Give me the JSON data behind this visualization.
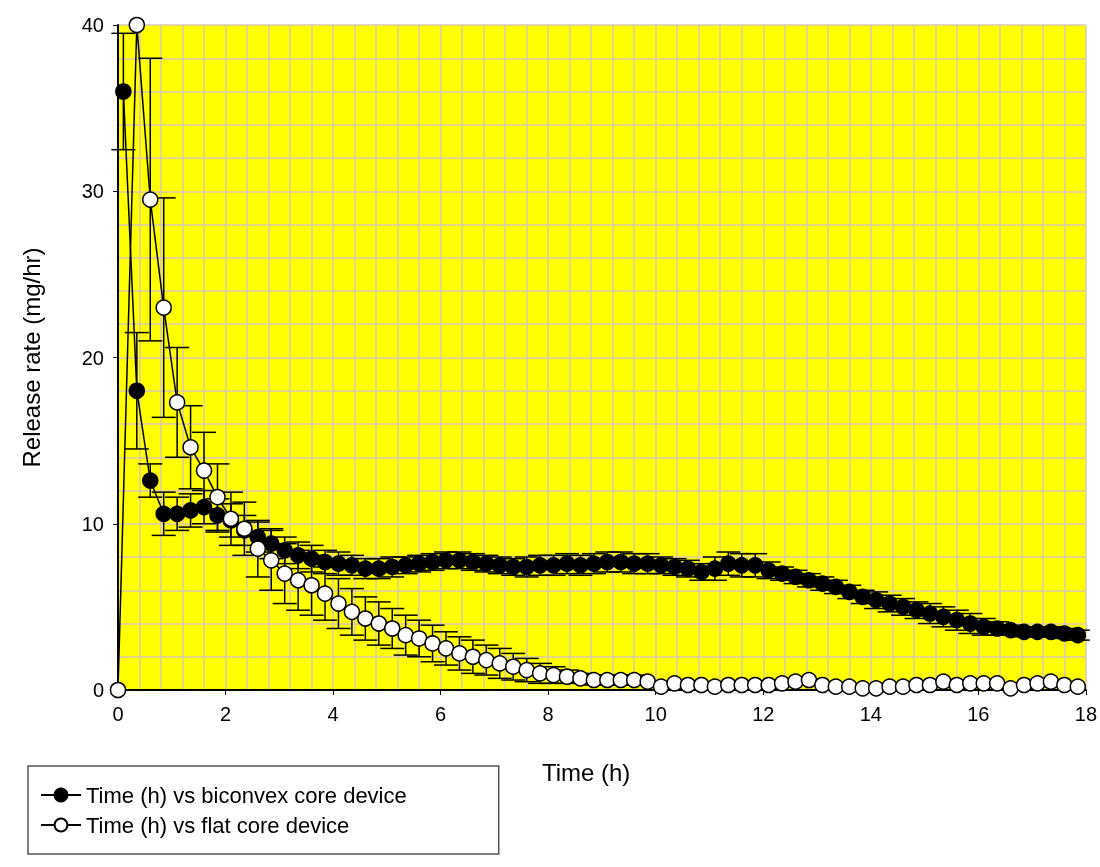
{
  "chart_data": {
    "type": "line",
    "xlabel": "Time (h)",
    "ylabel": "Release rate (mg/hr)",
    "xlim": [
      0,
      18
    ],
    "xticks": [
      0,
      2,
      4,
      6,
      8,
      10,
      12,
      14,
      16,
      18
    ],
    "ylim": [
      0,
      40
    ],
    "yticks": [
      0,
      10,
      20,
      30,
      40
    ],
    "grid": true,
    "legend": "bottom left",
    "marker": "circle",
    "line_style": "solid",
    "series": [
      {
        "name": "Time (h) vs biconvex core device",
        "color": "#000000",
        "x": [
          0.1,
          0.35,
          0.6,
          0.85,
          1.1,
          1.35,
          1.6,
          1.85,
          2.1,
          2.35,
          2.6,
          2.85,
          3.1,
          3.35,
          3.6,
          3.85,
          4.1,
          4.35,
          4.6,
          4.85,
          5.1,
          5.35,
          5.6,
          5.85,
          6.1,
          6.35,
          6.6,
          6.85,
          7.1,
          7.35,
          7.6,
          7.85,
          8.1,
          8.35,
          8.6,
          8.85,
          9.1,
          9.35,
          9.6,
          9.85,
          10.1,
          10.35,
          10.6,
          10.85,
          11.1,
          11.35,
          11.6,
          11.85,
          12.1,
          12.35,
          12.6,
          12.85,
          13.1,
          13.35,
          13.6,
          13.85,
          14.1,
          14.35,
          14.6,
          14.85,
          15.1,
          15.35,
          15.6,
          15.85,
          16.1,
          16.35,
          16.6,
          16.85,
          17.1,
          17.35,
          17.6,
          17.85
        ],
        "values": [
          36,
          18,
          12.6,
          10.6,
          10.6,
          10.8,
          11,
          10.5,
          10.2,
          9.6,
          9.2,
          8.8,
          8.4,
          8.1,
          7.9,
          7.7,
          7.6,
          7.5,
          7.3,
          7.3,
          7.4,
          7.5,
          7.6,
          7.7,
          7.8,
          7.8,
          7.7,
          7.6,
          7.5,
          7.4,
          7.4,
          7.5,
          7.5,
          7.6,
          7.5,
          7.6,
          7.7,
          7.7,
          7.6,
          7.6,
          7.5,
          7.4,
          7.3,
          7.1,
          7.3,
          7.6,
          7.5,
          7.5,
          7.2,
          7,
          6.8,
          6.6,
          6.4,
          6.2,
          5.9,
          5.6,
          5.4,
          5.2,
          5,
          4.8,
          4.6,
          4.4,
          4.2,
          4,
          3.8,
          3.7,
          3.6,
          3.5,
          3.5,
          3.5,
          3.4,
          3.3
        ],
        "errors": [
          3.5,
          3.5,
          1,
          1.3,
          1,
          1,
          1,
          1,
          1,
          0.9,
          0.9,
          0.9,
          0.8,
          0.8,
          0.8,
          0.7,
          0.7,
          0.6,
          0.6,
          0.6,
          0.6,
          0.5,
          0.5,
          0.5,
          0.5,
          0.5,
          0.5,
          0.5,
          0.5,
          0.5,
          0.6,
          0.6,
          0.6,
          0.6,
          0.6,
          0.6,
          0.6,
          0.6,
          0.6,
          0.6,
          0.5,
          0.5,
          0.5,
          0.5,
          0.7,
          0.7,
          0.7,
          0.7,
          0.5,
          0.4,
          0.4,
          0.4,
          0.4,
          0.4,
          0.4,
          0.4,
          0.5,
          0.5,
          0.5,
          0.5,
          0.6,
          0.6,
          0.6,
          0.6,
          0.5,
          0.4,
          0.3,
          0.3,
          0.3,
          0.3,
          0.3,
          0.3
        ]
      },
      {
        "name": "Time (h) vs flat core device",
        "color": "#ffffff",
        "x": [
          0,
          0.35,
          0.6,
          0.85,
          1.1,
          1.35,
          1.6,
          1.85,
          2.1,
          2.35,
          2.6,
          2.85,
          3.1,
          3.35,
          3.6,
          3.85,
          4.1,
          4.35,
          4.6,
          4.85,
          5.1,
          5.35,
          5.6,
          5.85,
          6.1,
          6.35,
          6.6,
          6.85,
          7.1,
          7.35,
          7.6,
          7.85,
          8.1,
          8.35,
          8.6,
          8.85,
          9.1,
          9.35,
          9.6,
          9.85,
          10.1,
          10.35,
          10.6,
          10.85,
          11.1,
          11.35,
          11.6,
          11.85,
          12.1,
          12.35,
          12.6,
          12.85,
          13.1,
          13.35,
          13.6,
          13.85,
          14.1,
          14.35,
          14.6,
          14.85,
          15.1,
          15.35,
          15.6,
          15.85,
          16.1,
          16.35,
          16.6,
          16.85,
          17.1,
          17.35,
          17.6,
          17.85
        ],
        "values": [
          0,
          40,
          29.5,
          23,
          17.3,
          14.6,
          13.2,
          11.6,
          10.3,
          9.7,
          8.5,
          7.8,
          7,
          6.6,
          6.3,
          5.8,
          5.2,
          4.7,
          4.3,
          4,
          3.7,
          3.3,
          3.1,
          2.8,
          2.5,
          2.2,
          2,
          1.8,
          1.6,
          1.4,
          1.2,
          1,
          0.9,
          0.8,
          0.7,
          0.6,
          0.6,
          0.6,
          0.6,
          0.5,
          0.2,
          0.4,
          0.3,
          0.3,
          0.2,
          0.3,
          0.3,
          0.3,
          0.3,
          0.4,
          0.5,
          0.6,
          0.3,
          0.2,
          0.2,
          0.1,
          0.1,
          0.2,
          0.2,
          0.3,
          0.3,
          0.5,
          0.3,
          0.4,
          0.4,
          0.4,
          0.1,
          0.3,
          0.4,
          0.5,
          0.3,
          0.2
        ],
        "errors": [
          null,
          null,
          8.5,
          6.6,
          3.3,
          2.5,
          2.3,
          2,
          1.6,
          1.6,
          1.7,
          1.8,
          1.8,
          1.8,
          1.8,
          1.6,
          1.5,
          1.4,
          1.3,
          1.3,
          1.2,
          1.2,
          1.1,
          1.1,
          1,
          1,
          1,
          0.9,
          0.9,
          0.8,
          0.7,
          0.6,
          0.5,
          0.4,
          0.3,
          0.3,
          0.3,
          0.3,
          0.3,
          null,
          null,
          null,
          null,
          null,
          null,
          null,
          null,
          null,
          null,
          null,
          null,
          null,
          null,
          null,
          null,
          null,
          null,
          null,
          null,
          null,
          null,
          null,
          null,
          null,
          null,
          null,
          null,
          null,
          null,
          null,
          null,
          null
        ]
      }
    ]
  }
}
